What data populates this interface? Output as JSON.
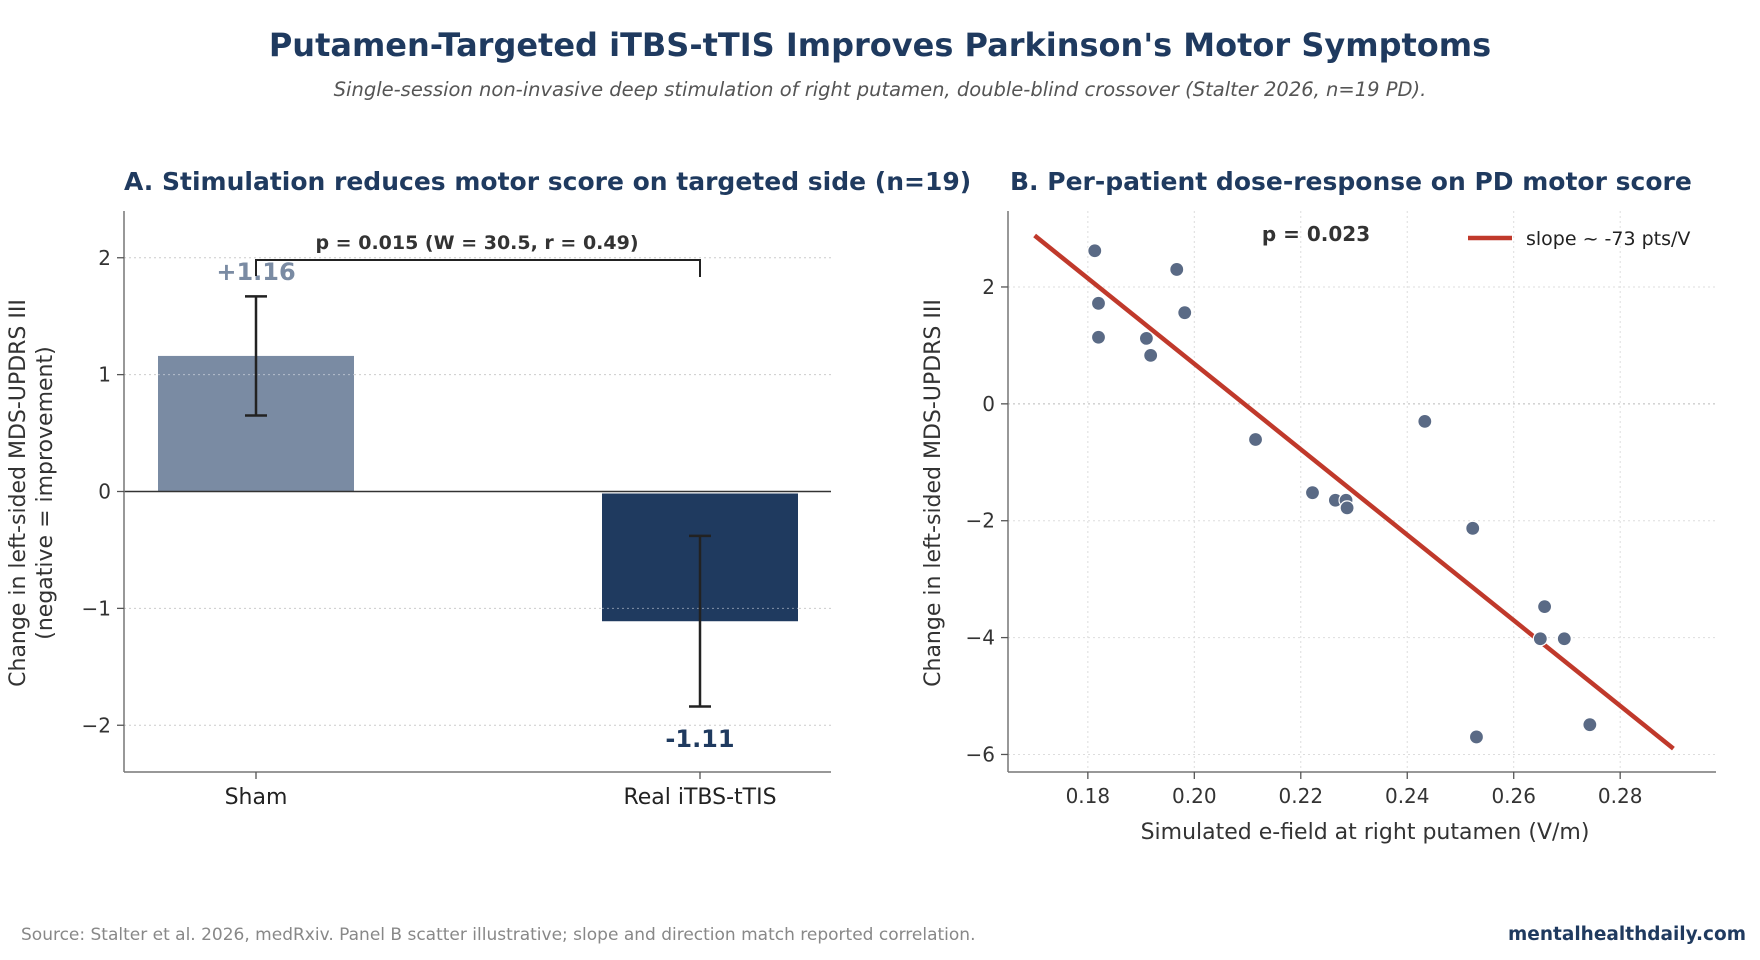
{
  "title": "Putamen-Targeted iTBS-tTIS Improves Parkinson's Motor Symptoms",
  "subtitle": "Single-session non-invasive deep stimulation of right putamen, double-blind crossover (Stalter 2026, n=19 PD).",
  "source": "Source: Stalter et al. 2026, medRxiv. Panel B scatter illustrative; slope and direction match reported correlation.",
  "brand": "mentalhealthdaily.com",
  "colors": {
    "sham": "#7a8ba3",
    "real": "#1f3a5f",
    "points": "#5a6a85",
    "fit": "#c0392b",
    "title": "#1f3a5f"
  },
  "chart_data": [
    {
      "type": "bar",
      "title": "A. Stimulation reduces motor score on targeted side (n=19)",
      "ylabel": "Change in left-sided MDS-UPDRS III",
      "ylabel2": "(negative = improvement)",
      "xlabel": "",
      "categories": [
        "Sham",
        "Real iTBS-tTIS"
      ],
      "values": [
        1.16,
        -1.11
      ],
      "value_labels": [
        "+1.16",
        "-1.11"
      ],
      "errors": [
        [
          0.65,
          1.67
        ],
        [
          -1.84,
          -0.38
        ]
      ],
      "ylim": [
        -2.4,
        2.4
      ],
      "yticks": [
        -2,
        -1,
        0,
        1,
        2
      ],
      "ytick_labels": [
        "−2",
        "−1",
        "0",
        "1",
        "2"
      ],
      "grid": "y",
      "annotation": "p = 0.015 (W = 30.5, r = 0.49)"
    },
    {
      "type": "scatter",
      "title": "B. Per-patient dose-response on PD motor score",
      "xlabel": "Simulated e-field at right putamen (V/m)",
      "ylabel": "Change in left-sided MDS-UPDRS III",
      "xlim": [
        0.165,
        0.298
      ],
      "ylim": [
        -6.3,
        3.3
      ],
      "xticks": [
        0.18,
        0.2,
        0.22,
        0.24,
        0.26,
        0.28
      ],
      "xtick_labels": [
        "0.18",
        "0.20",
        "0.22",
        "0.24",
        "0.26",
        "0.28"
      ],
      "yticks": [
        -6,
        -4,
        -2,
        0,
        2
      ],
      "ytick_labels": [
        "−6",
        "−4",
        "−2",
        "0",
        "2"
      ],
      "grid": "both",
      "legend": "top-right",
      "annotation": "p = 0.023",
      "points": [
        {
          "x": 0.1813,
          "y": 2.62
        },
        {
          "x": 0.182,
          "y": 1.72
        },
        {
          "x": 0.182,
          "y": 1.14
        },
        {
          "x": 0.191,
          "y": 1.12
        },
        {
          "x": 0.1918,
          "y": 0.83
        },
        {
          "x": 0.1967,
          "y": 2.3
        },
        {
          "x": 0.1982,
          "y": 1.56
        },
        {
          "x": 0.2115,
          "y": -0.61
        },
        {
          "x": 0.2222,
          "y": -1.52
        },
        {
          "x": 0.2265,
          "y": -1.65
        },
        {
          "x": 0.2285,
          "y": -1.65
        },
        {
          "x": 0.2287,
          "y": -1.78
        },
        {
          "x": 0.2433,
          "y": -0.3
        },
        {
          "x": 0.2523,
          "y": -2.13
        },
        {
          "x": 0.253,
          "y": -5.7
        },
        {
          "x": 0.265,
          "y": -4.02
        },
        {
          "x": 0.2658,
          "y": -3.47
        },
        {
          "x": 0.2695,
          "y": -4.02
        },
        {
          "x": 0.2743,
          "y": -5.49
        }
      ],
      "fit": {
        "name": "slope ~ -73 pts/V",
        "x": [
          0.17,
          0.29
        ],
        "y": [
          2.88,
          -5.9
        ]
      }
    }
  ]
}
